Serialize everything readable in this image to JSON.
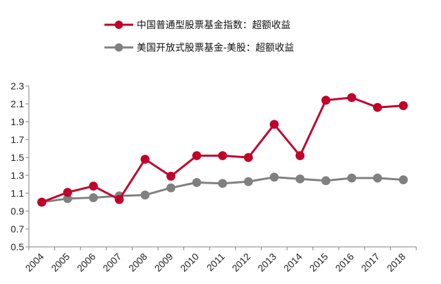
{
  "chart_data": {
    "type": "line",
    "title": "",
    "xlabel": "",
    "ylabel": "",
    "x": [
      "2004",
      "2005",
      "2006",
      "2007",
      "2008",
      "2009",
      "2010",
      "2011",
      "2012",
      "2013",
      "2014",
      "2015",
      "2016",
      "2017",
      "2018"
    ],
    "ylim": [
      0.5,
      2.3
    ],
    "yticks": [
      "0.5",
      "0.7",
      "0.9",
      "1.1",
      "1.3",
      "1.5",
      "1.7",
      "1.9",
      "2.1",
      "2.3"
    ],
    "grid": false,
    "legend_position": "top",
    "series": [
      {
        "name": "中国普通型股票基金指数：超额收益",
        "color": "#c0002a",
        "values": [
          1.0,
          1.11,
          1.18,
          1.03,
          1.48,
          1.29,
          1.52,
          1.52,
          1.5,
          1.87,
          1.52,
          2.14,
          2.17,
          2.06,
          2.08
        ]
      },
      {
        "name": "美国开放式股票基金-美股：超额收益",
        "color": "#808080",
        "values": [
          1.0,
          1.04,
          1.05,
          1.07,
          1.08,
          1.16,
          1.22,
          1.21,
          1.23,
          1.28,
          1.26,
          1.24,
          1.27,
          1.27,
          1.25
        ]
      }
    ]
  }
}
